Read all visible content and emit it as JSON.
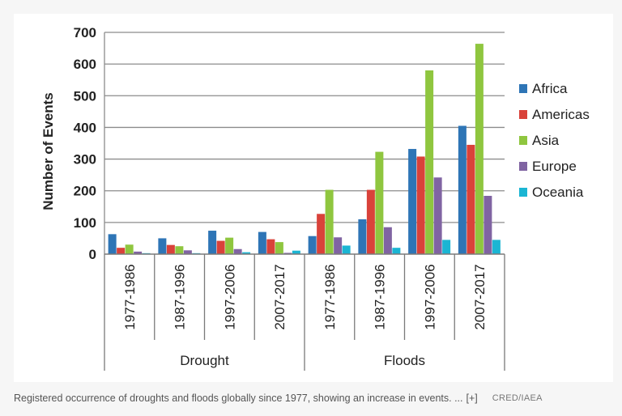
{
  "chart_data": {
    "type": "bar",
    "ylabel": "Number of Events",
    "ylim": [
      0,
      700
    ],
    "yticks": [
      0,
      100,
      200,
      300,
      400,
      500,
      600,
      700
    ],
    "grid": true,
    "legend_position": "right",
    "groups": [
      {
        "name": "Drought",
        "categories": [
          "1977-1986",
          "1987-1996",
          "1997-2006",
          "2007-2017"
        ]
      },
      {
        "name": "Floods",
        "categories": [
          "1977-1986",
          "1987-1996",
          "1997-2006",
          "2007-2017"
        ]
      }
    ],
    "series": [
      {
        "name": "Africa",
        "color": "#2e75b6",
        "values": [
          63,
          50,
          74,
          70,
          57,
          110,
          332,
          405
        ]
      },
      {
        "name": "Americas",
        "color": "#d9423a",
        "values": [
          20,
          29,
          42,
          47,
          127,
          203,
          308,
          345
        ]
      },
      {
        "name": "Asia",
        "color": "#8fc63f",
        "values": [
          30,
          25,
          52,
          38,
          203,
          323,
          580,
          664
        ]
      },
      {
        "name": "Europe",
        "color": "#8064a2",
        "values": [
          8,
          12,
          16,
          4,
          53,
          85,
          242,
          184
        ]
      },
      {
        "name": "Oceania",
        "color": "#1bb5d3",
        "values": [
          3,
          3,
          6,
          11,
          27,
          20,
          45,
          45
        ]
      }
    ]
  },
  "caption": {
    "text": "Registered occurrence of droughts and floods globally since 1977, showing an increase in events. ...",
    "expand": "[+]",
    "credit": "CRED/IAEA"
  }
}
